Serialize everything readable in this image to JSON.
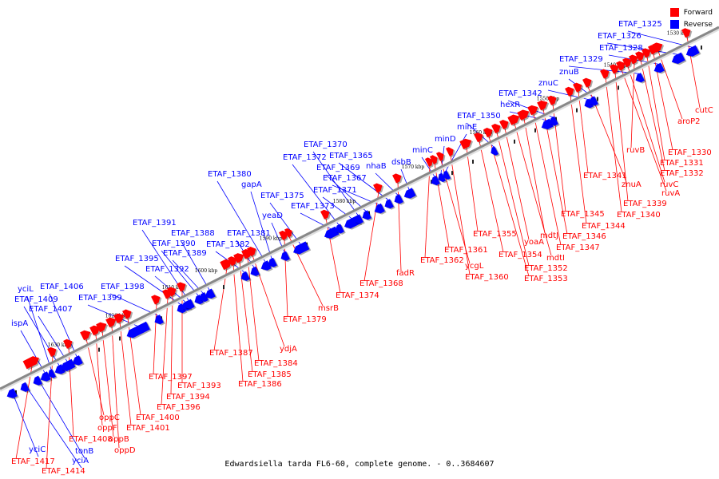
{
  "caption": "Edwardsiella tarda FL6-60, complete genome. - 0..3684607",
  "legend": {
    "forward": "Forward",
    "reverse": "Reverse"
  },
  "colors": {
    "forward": "#ff0000",
    "reverse": "#0000ff",
    "backbone": "#888888"
  },
  "scale": [
    "1630 kbp",
    "1620 kbp",
    "1610 kbp",
    "1600 kbp",
    "1590 kbp",
    "1580 kbp",
    "1570 kbp",
    "1560 kbp",
    "1550 kbp",
    "1540 kbp",
    "1530 kbp"
  ],
  "reverse_genes": [
    "yciC",
    "yciA",
    "tonB",
    "ispA",
    "yciL",
    "ETAF_1409",
    "ETAF_1407",
    "ETAF_1406",
    "ETAF_1399",
    "ETAF_1398",
    "ETAF_1395",
    "ETAF_1392",
    "ETAF_1391",
    "ETAF_1390",
    "ETAF_1389",
    "ETAF_1388",
    "ETAF_1382",
    "ETAF_1381",
    "ETAF_1380",
    "gapA",
    "yeaD",
    "ETAF_1375",
    "ETAF_1373",
    "ETAF_1372",
    "ETAF_1371",
    "ETAF_1370",
    "ETAF_1369",
    "ETAF_1367",
    "ETAF_1365",
    "nhaB",
    "dsbB",
    "minC",
    "minD",
    "minE",
    "ETAF_1350",
    "hexR",
    "ETAF_1342",
    "znuC",
    "znuB",
    "ETAF_1329",
    "ETAF_1328",
    "ETAF_1326",
    "ETAF_1325"
  ],
  "forward_genes": [
    "ETAF_1417",
    "ETAF_1414",
    "ETAF_1408",
    "oppC",
    "oppF",
    "oppB",
    "oppD",
    "ETAF_1401",
    "ETAF_1400",
    "ETAF_1397",
    "ETAF_1396",
    "ETAF_1394",
    "ETAF_1393",
    "ETAF_1387",
    "ETAF_1386",
    "ETAF_1385",
    "ETAF_1384",
    "ydjA",
    "ETAF_1379",
    "msrB",
    "ETAF_1374",
    "ETAF_1368",
    "fadR",
    "ETAF_1362",
    "ETAF_1361",
    "ycgL",
    "ETAF_1360",
    "ETAF_1355",
    "ETAF_1354",
    "ETAF_1353",
    "ETAF_1352",
    "yoaA",
    "mdtI",
    "mdtJ",
    "ETAF_1347",
    "ETAF_1346",
    "ETAF_1345",
    "ETAF_1344",
    "ETAF_1341",
    "znuA",
    "ETAF_1340",
    "ETAF_1339",
    "ruvA",
    "ruvC",
    "ruvB",
    "ETAF_1332",
    "ETAF_1331",
    "ETAF_1330",
    "aroP2",
    "cutC"
  ]
}
